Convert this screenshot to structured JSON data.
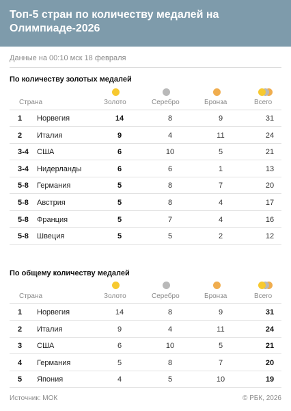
{
  "title": "Топ-5 стран по количеству медалей на Олимпиаде-2026",
  "updated": "Данные на 00:10 мск 18 февраля",
  "columns": {
    "country": "Страна",
    "gold": "Золото",
    "silver": "Серебро",
    "bronze": "Бронза",
    "total": "Всего"
  },
  "colors": {
    "header_bg": "#7e9bab",
    "gold": "#f7c930",
    "silver": "#b9b9b9",
    "bronze": "#f0ad4e"
  },
  "icons": {
    "gold": "gold-medal-icon",
    "silver": "silver-medal-icon",
    "bronze": "bronze-medal-icon",
    "total": "all-medals-icon"
  },
  "by_gold": {
    "title": "По количеству золотых медалей",
    "rows": [
      {
        "rank": "1",
        "country": "Норвегия",
        "gold": "14",
        "silver": "8",
        "bronze": "9",
        "total": "31"
      },
      {
        "rank": "2",
        "country": "Италия",
        "gold": "9",
        "silver": "4",
        "bronze": "11",
        "total": "24"
      },
      {
        "rank": "3-4",
        "country": "США",
        "gold": "6",
        "silver": "10",
        "bronze": "5",
        "total": "21"
      },
      {
        "rank": "3-4",
        "country": "Нидерланды",
        "gold": "6",
        "silver": "6",
        "bronze": "1",
        "total": "13"
      },
      {
        "rank": "5-8",
        "country": "Германия",
        "gold": "5",
        "silver": "8",
        "bronze": "7",
        "total": "20"
      },
      {
        "rank": "5-8",
        "country": "Австрия",
        "gold": "5",
        "silver": "8",
        "bronze": "4",
        "total": "17"
      },
      {
        "rank": "5-8",
        "country": "Франция",
        "gold": "5",
        "silver": "7",
        "bronze": "4",
        "total": "16"
      },
      {
        "rank": "5-8",
        "country": "Швеция",
        "gold": "5",
        "silver": "5",
        "bronze": "2",
        "total": "12"
      }
    ]
  },
  "by_total": {
    "title": "По общему количеству медалей",
    "rows": [
      {
        "rank": "1",
        "country": "Норвегия",
        "gold": "14",
        "silver": "8",
        "bronze": "9",
        "total": "31"
      },
      {
        "rank": "2",
        "country": "Италия",
        "gold": "9",
        "silver": "4",
        "bronze": "11",
        "total": "24"
      },
      {
        "rank": "3",
        "country": "США",
        "gold": "6",
        "silver": "10",
        "bronze": "5",
        "total": "21"
      },
      {
        "rank": "4",
        "country": "Германия",
        "gold": "5",
        "silver": "8",
        "bronze": "7",
        "total": "20"
      },
      {
        "rank": "5",
        "country": "Япония",
        "gold": "4",
        "silver": "5",
        "bronze": "10",
        "total": "19"
      }
    ]
  },
  "footer": {
    "source": "Источник: МОК",
    "copyright": "© РБК, 2026"
  }
}
